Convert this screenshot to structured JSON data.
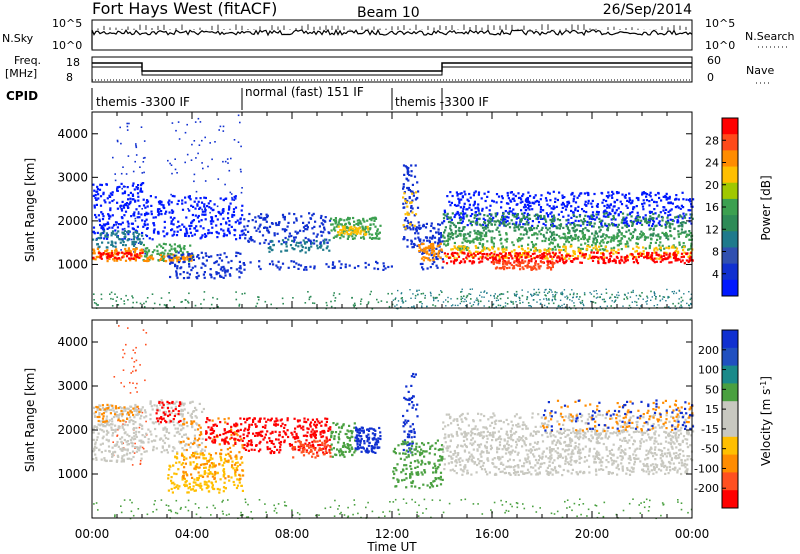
{
  "header": {
    "station": "Fort Hays West (fitACF)",
    "beam": "Beam 10",
    "date": "26/Sep/2014"
  },
  "chart_data": [
    {
      "type": "line",
      "name": "noise",
      "left_label": "N.Sky",
      "right_label": "N.Search",
      "left_ticks": [
        "10^5",
        "10^0"
      ],
      "right_ticks": [
        "10^5",
        "10^0"
      ]
    },
    {
      "type": "line",
      "name": "frequency",
      "left_label": "Freq.",
      "left_unit": "[MHz]",
      "right_label": "Nave",
      "left_ticks": [
        18,
        8
      ],
      "right_ticks": [
        60,
        0
      ],
      "freq_steps": [
        {
          "t0": 0,
          "t1": 2,
          "level": "high"
        },
        {
          "t0": 2,
          "t1": 14,
          "level": "low"
        },
        {
          "t0": 14,
          "t1": 24,
          "level": "high"
        }
      ]
    },
    {
      "type": "table",
      "name": "cpid",
      "label": "CPID",
      "segments": [
        {
          "t0": 0,
          "t1": 6,
          "text": "themis -3300 IF"
        },
        {
          "t0": 6,
          "t1": 12,
          "text": "normal (fast) 151 IF"
        },
        {
          "t0": 12,
          "t1": 14,
          "text": "themis -3300 IF"
        }
      ]
    },
    {
      "type": "heatmap",
      "name": "power",
      "ylabel": "Slant Range [km]",
      "yticks": [
        1000,
        2000,
        3000,
        4000
      ],
      "ylim": [
        0,
        4500
      ],
      "xlim": [
        0,
        24
      ],
      "colorbar_label": "Power [dB]",
      "colorbar_ticks": [
        28,
        24,
        20,
        16,
        12,
        8,
        4
      ],
      "colorbar_colors": [
        "#ff0000",
        "#ff4a1a",
        "#ff8c00",
        "#ffbf00",
        "#a0c800",
        "#3ca050",
        "#2e8b57",
        "#1f7a8c",
        "#3050b0",
        "#1030d0",
        "#0018ff"
      ]
    },
    {
      "type": "heatmap",
      "name": "velocity",
      "ylabel": "Slant Range [km]",
      "yticks": [
        1000,
        2000,
        3000,
        4000
      ],
      "ylim": [
        0,
        4500
      ],
      "xlim": [
        0,
        24
      ],
      "xlabel": "Time UT",
      "xticks": [
        "00:00",
        "04:00",
        "08:00",
        "12:00",
        "16:00",
        "20:00",
        "00:00"
      ],
      "colorbar_label": "Velocity [m s",
      "colorbar_label_sup": "-1",
      "colorbar_label_end": "]",
      "colorbar_ticks": [
        "200",
        "100",
        "50",
        "15",
        "-15",
        "-50",
        "-100",
        "-200"
      ],
      "colorbar_colors": [
        "#1030d0",
        "#2050c0",
        "#1a8a8a",
        "#4aa040",
        "#c8c8c0",
        "#c8c8c0",
        "#ffbf00",
        "#ff8c00",
        "#ff5020",
        "#ff0000"
      ]
    }
  ]
}
